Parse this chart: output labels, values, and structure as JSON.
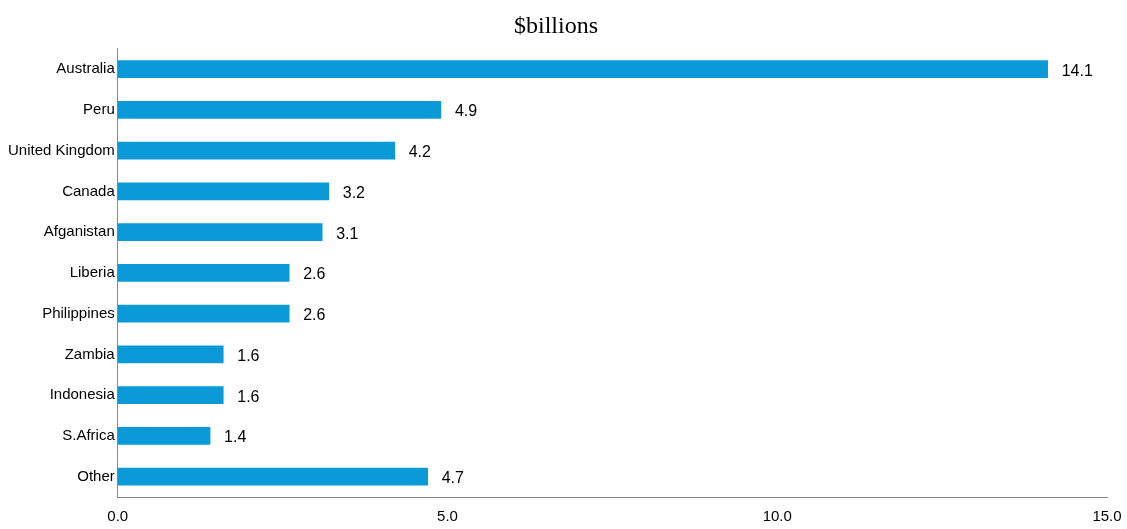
{
  "chart_data": {
    "type": "bar",
    "orientation": "horizontal",
    "title": "$billions",
    "categories": [
      "Australia",
      "Peru",
      "United Kingdom",
      "Canada",
      "Afganistan",
      "Liberia",
      "Philippines",
      "Zambia",
      "Indonesia",
      "S.Africa",
      "Other"
    ],
    "values": [
      14.1,
      4.9,
      4.2,
      3.2,
      3.1,
      2.6,
      2.6,
      1.6,
      1.6,
      1.4,
      4.7
    ],
    "color": "#0a9ad8",
    "data_labels": true,
    "grid": false,
    "legend": false,
    "xlim": [
      0,
      15
    ],
    "xticks": [
      {
        "value": 0,
        "label": "0.0"
      },
      {
        "value": 5,
        "label": "5.0"
      },
      {
        "value": 10,
        "label": "10.0"
      },
      {
        "value": 15,
        "label": "15.0"
      }
    ]
  }
}
